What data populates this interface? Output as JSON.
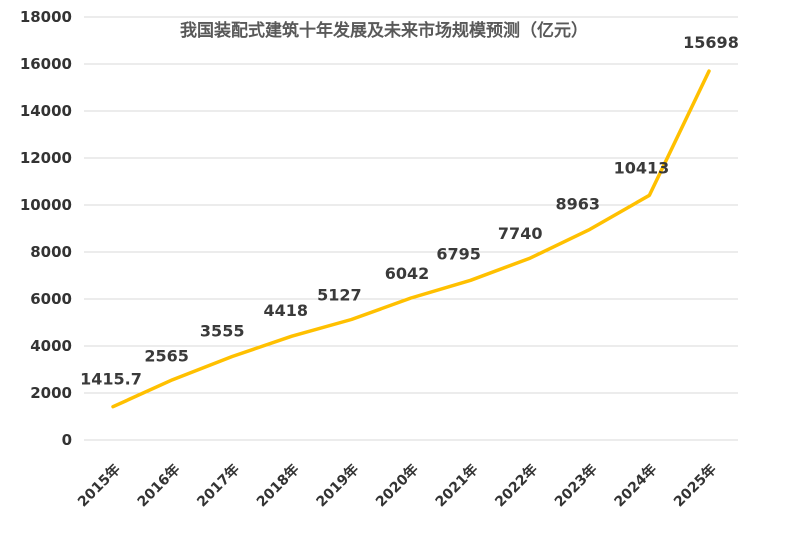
{
  "chart_data": {
    "type": "line",
    "title": "我国装配式建筑十年发展及未来市场规模预测（亿元）",
    "categories": [
      "2015年",
      "2016年",
      "2017年",
      "2018年",
      "2019年",
      "2020年",
      "2021年",
      "2022年",
      "2023年",
      "2024年",
      "2025年"
    ],
    "series": [
      {
        "values": [
          1415.7,
          2565,
          3555,
          4418,
          5127,
          6042,
          6795,
          7740,
          8963,
          10413,
          15698
        ],
        "labels": [
          "1415.7",
          "2565",
          "3555",
          "4418",
          "5127",
          "6042",
          "6795",
          "7740",
          "8963",
          "10413",
          "15698"
        ]
      }
    ],
    "y_ticks": [
      "0",
      "2000",
      "4000",
      "6000",
      "8000",
      "10000",
      "12000",
      "14000",
      "16000",
      "18000"
    ],
    "ylim": [
      0,
      18000
    ],
    "grid": true,
    "legend": "none",
    "line_color": "#FFC000",
    "grid_color": "#D9D9D9"
  }
}
